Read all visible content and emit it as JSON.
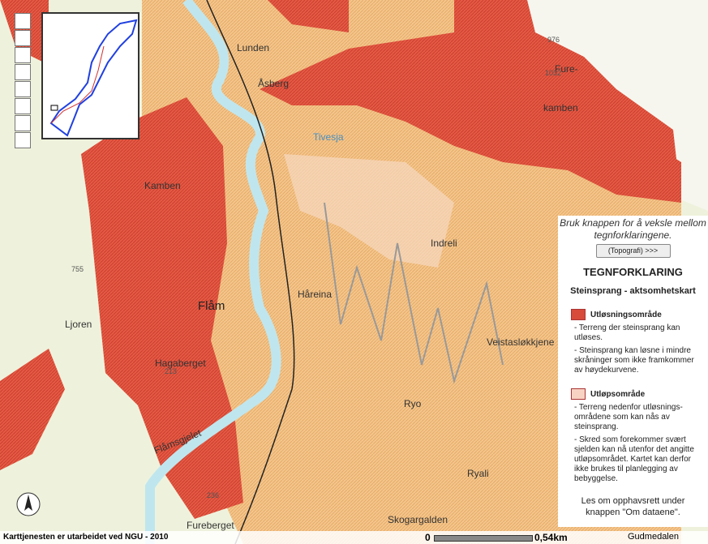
{
  "map": {
    "labels": [
      "Lunden",
      "Åsberg",
      "Tivesja",
      "976",
      "Fure-",
      "1032",
      "kamben",
      "Kamben",
      "Indreli",
      "755",
      "Flåm",
      "Håreina",
      "Ljoren",
      "Hagaberget",
      "213",
      "Veistasløkkjene",
      "Ryo",
      "Flåmsgjelet",
      "Ryali",
      "236",
      "Fureberget",
      "Skogargalden",
      "Gudmedalen"
    ],
    "footer": "Karttjenesten er utarbeidet ved NGU - 2010",
    "scale": {
      "start": "0",
      "end": "0,54km"
    }
  },
  "legend": {
    "hint": "Bruk knappen for å veksle mellom tegnforklaringene.",
    "button": "(Topografi) >>>",
    "title": "TEGNFORKLARING",
    "subtitle": "Steinsprang - aktsomhetskart",
    "items": [
      {
        "title": "Utløsningsområde",
        "lines": [
          "- Terreng der steinsprang kan utløses.",
          "- Steinsprang kan løsne i mindre skråninger som ikke framkommer av høydekurvene."
        ]
      },
      {
        "title": "Utløpsområde",
        "lines": [
          "- Terreng nedenfor utløsnings-områdene som kan nås av steinsprang.",
          "- Skred som forekommer svært sjelden kan nå utenfor det angitte utløpsområdet. Kartet kan derfor ikke brukes til planlegging av bebyggelse."
        ]
      }
    ],
    "note": "Les om opphavsrett under knappen \"Om dataene\"."
  }
}
